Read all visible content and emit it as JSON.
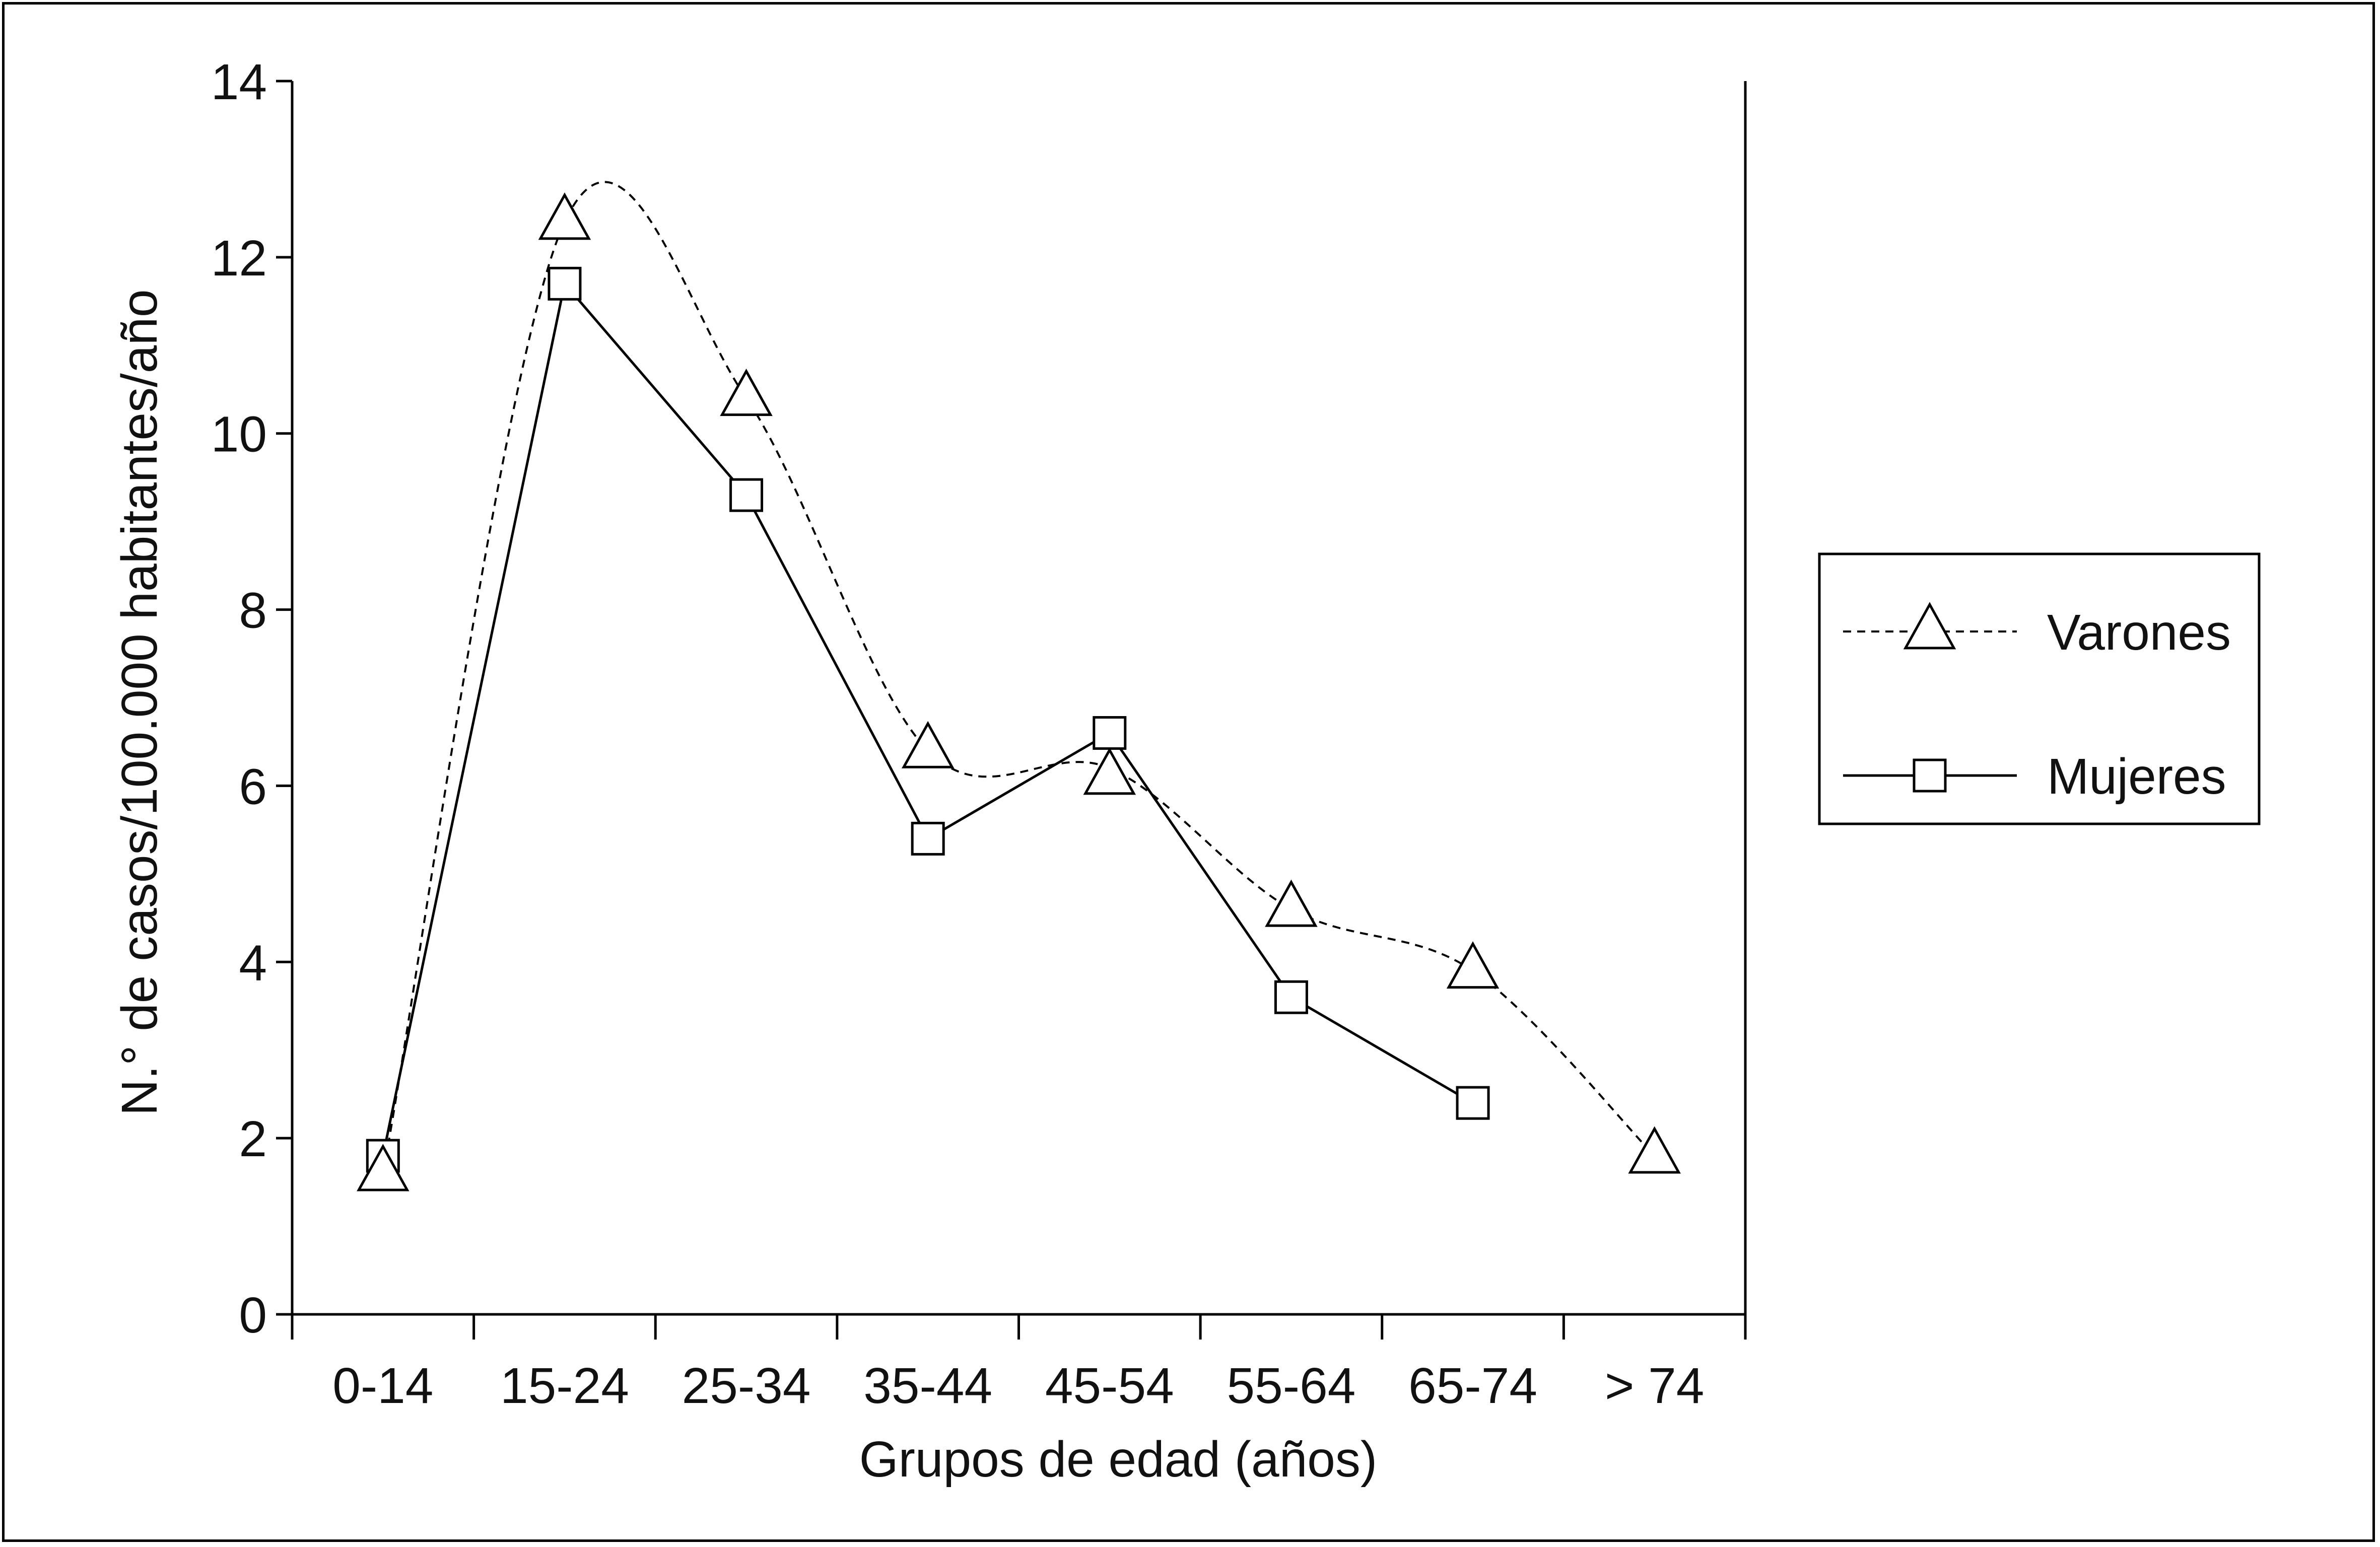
{
  "chart_data": {
    "type": "line",
    "title": "",
    "xlabel": "Grupos de edad (años)",
    "ylabel": "N.° de casos/100.000 habitantes/año",
    "categories": [
      "0-14",
      "15-24",
      "25-34",
      "35-44",
      "45-54",
      "55-64",
      "65-74",
      "> 74"
    ],
    "ylim": [
      0,
      14
    ],
    "yticks": [
      0,
      2,
      4,
      6,
      8,
      10,
      12,
      14
    ],
    "grid": false,
    "legend_position": "right",
    "series": [
      {
        "name": "Varones",
        "marker": "triangle",
        "line_style": "dashed",
        "values": [
          1.6,
          12.4,
          10.4,
          6.4,
          6.1,
          4.6,
          3.9,
          1.8
        ],
        "line_values": [
          1.6,
          12.4,
          10.4,
          6.4,
          6.2,
          4.6,
          3.9,
          1.8
        ]
      },
      {
        "name": "Mujeres",
        "marker": "square",
        "line_style": "solid",
        "values": [
          1.8,
          11.7,
          9.3,
          5.4,
          6.6,
          3.6,
          2.4,
          null
        ],
        "line_values": [
          1.8,
          11.7,
          9.3,
          5.4,
          6.6,
          3.6,
          2.4,
          null
        ]
      }
    ]
  }
}
